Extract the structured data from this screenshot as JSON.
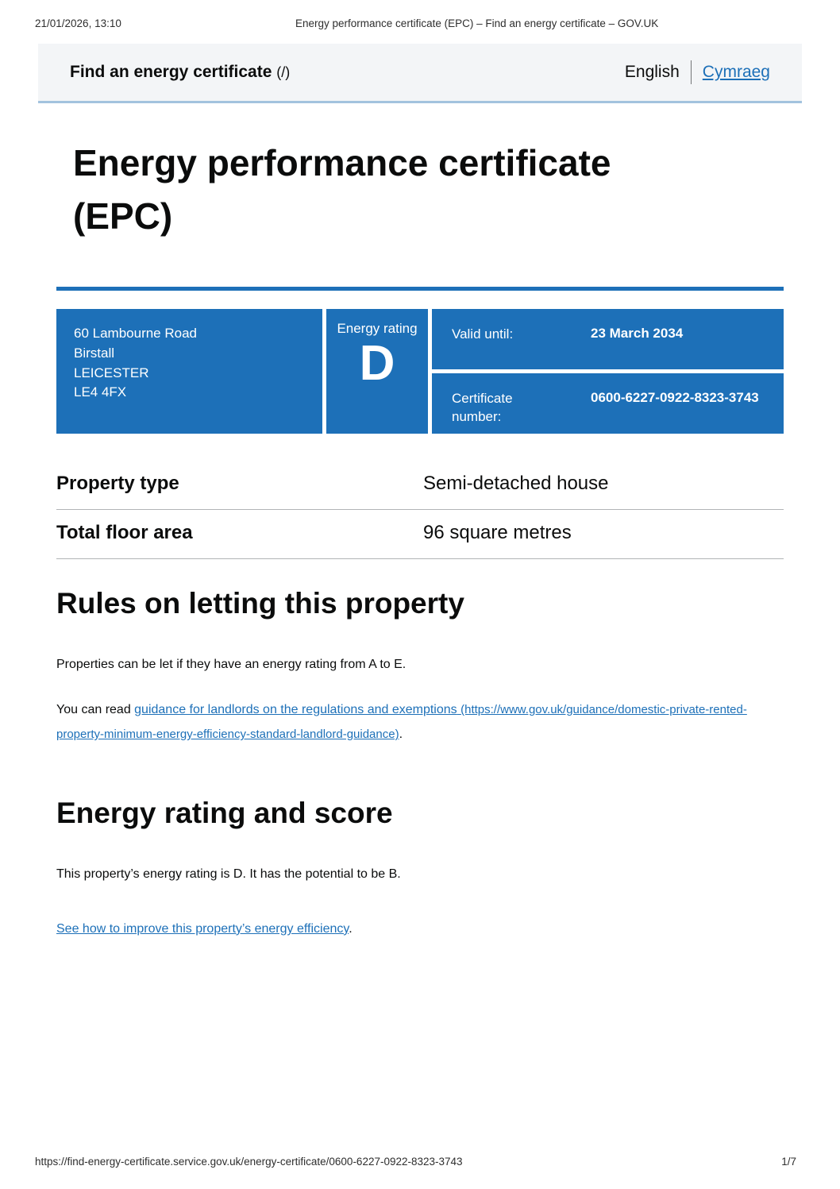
{
  "print_chrome": {
    "datetime": "21/01/2026, 13:10",
    "document_title": "Energy performance certificate (EPC) – Find an energy certificate – GOV.UK",
    "footer_url": "https://find-energy-certificate.service.gov.uk/energy-certificate/0600-6227-0922-8323-3743",
    "page_indicator": "1/7"
  },
  "header": {
    "service_name": "Find an energy certificate",
    "service_href_note": "(/)",
    "language_current": "English",
    "language_link": "Cymraeg"
  },
  "page": {
    "title_line1": "Energy performance certificate",
    "title_line2": "(EPC)"
  },
  "summary_box": {
    "address_lines": [
      "60 Lambourne Road",
      "Birstall",
      "LEICESTER",
      "LE4 4FX"
    ],
    "energy_rating_label": "Energy rating",
    "energy_rating_value": "D",
    "valid_until_label": "Valid until:",
    "valid_until_value": "23 March 2034",
    "certificate_number_label": "Certificate number:",
    "certificate_number_value": "0600-6227-0922-8323-3743"
  },
  "property_table": {
    "rows": [
      {
        "label": "Property type",
        "value": "Semi-detached house"
      },
      {
        "label": "Total floor area",
        "value": "96 square metres"
      }
    ]
  },
  "rules_section": {
    "heading": "Rules on letting this property",
    "paragraph1": "Properties can be let if they have an energy rating from A to E.",
    "paragraph2_prefix": "You can read ",
    "link_text": "guidance for landlords on the regulations and exemptions",
    "link_url_note": "(https://www.gov.uk/guidance/domestic-private-rented-property-minimum-energy-efficiency-standard-landlord-guidance)",
    "paragraph2_suffix": "."
  },
  "rating_section": {
    "heading": "Energy rating and score",
    "paragraph1": "This property’s energy rating is D. It has the potential to be B.",
    "link_text": "See how to improve this property’s energy efficiency",
    "link_suffix": "."
  },
  "colors": {
    "govuk_blue": "#1d70b8",
    "link_blue": "#1d70b8",
    "header_background": "#f3f5f7",
    "header_border": "#a3c3de",
    "table_border": "#b1b4b6",
    "text": "#0b0c0c"
  }
}
